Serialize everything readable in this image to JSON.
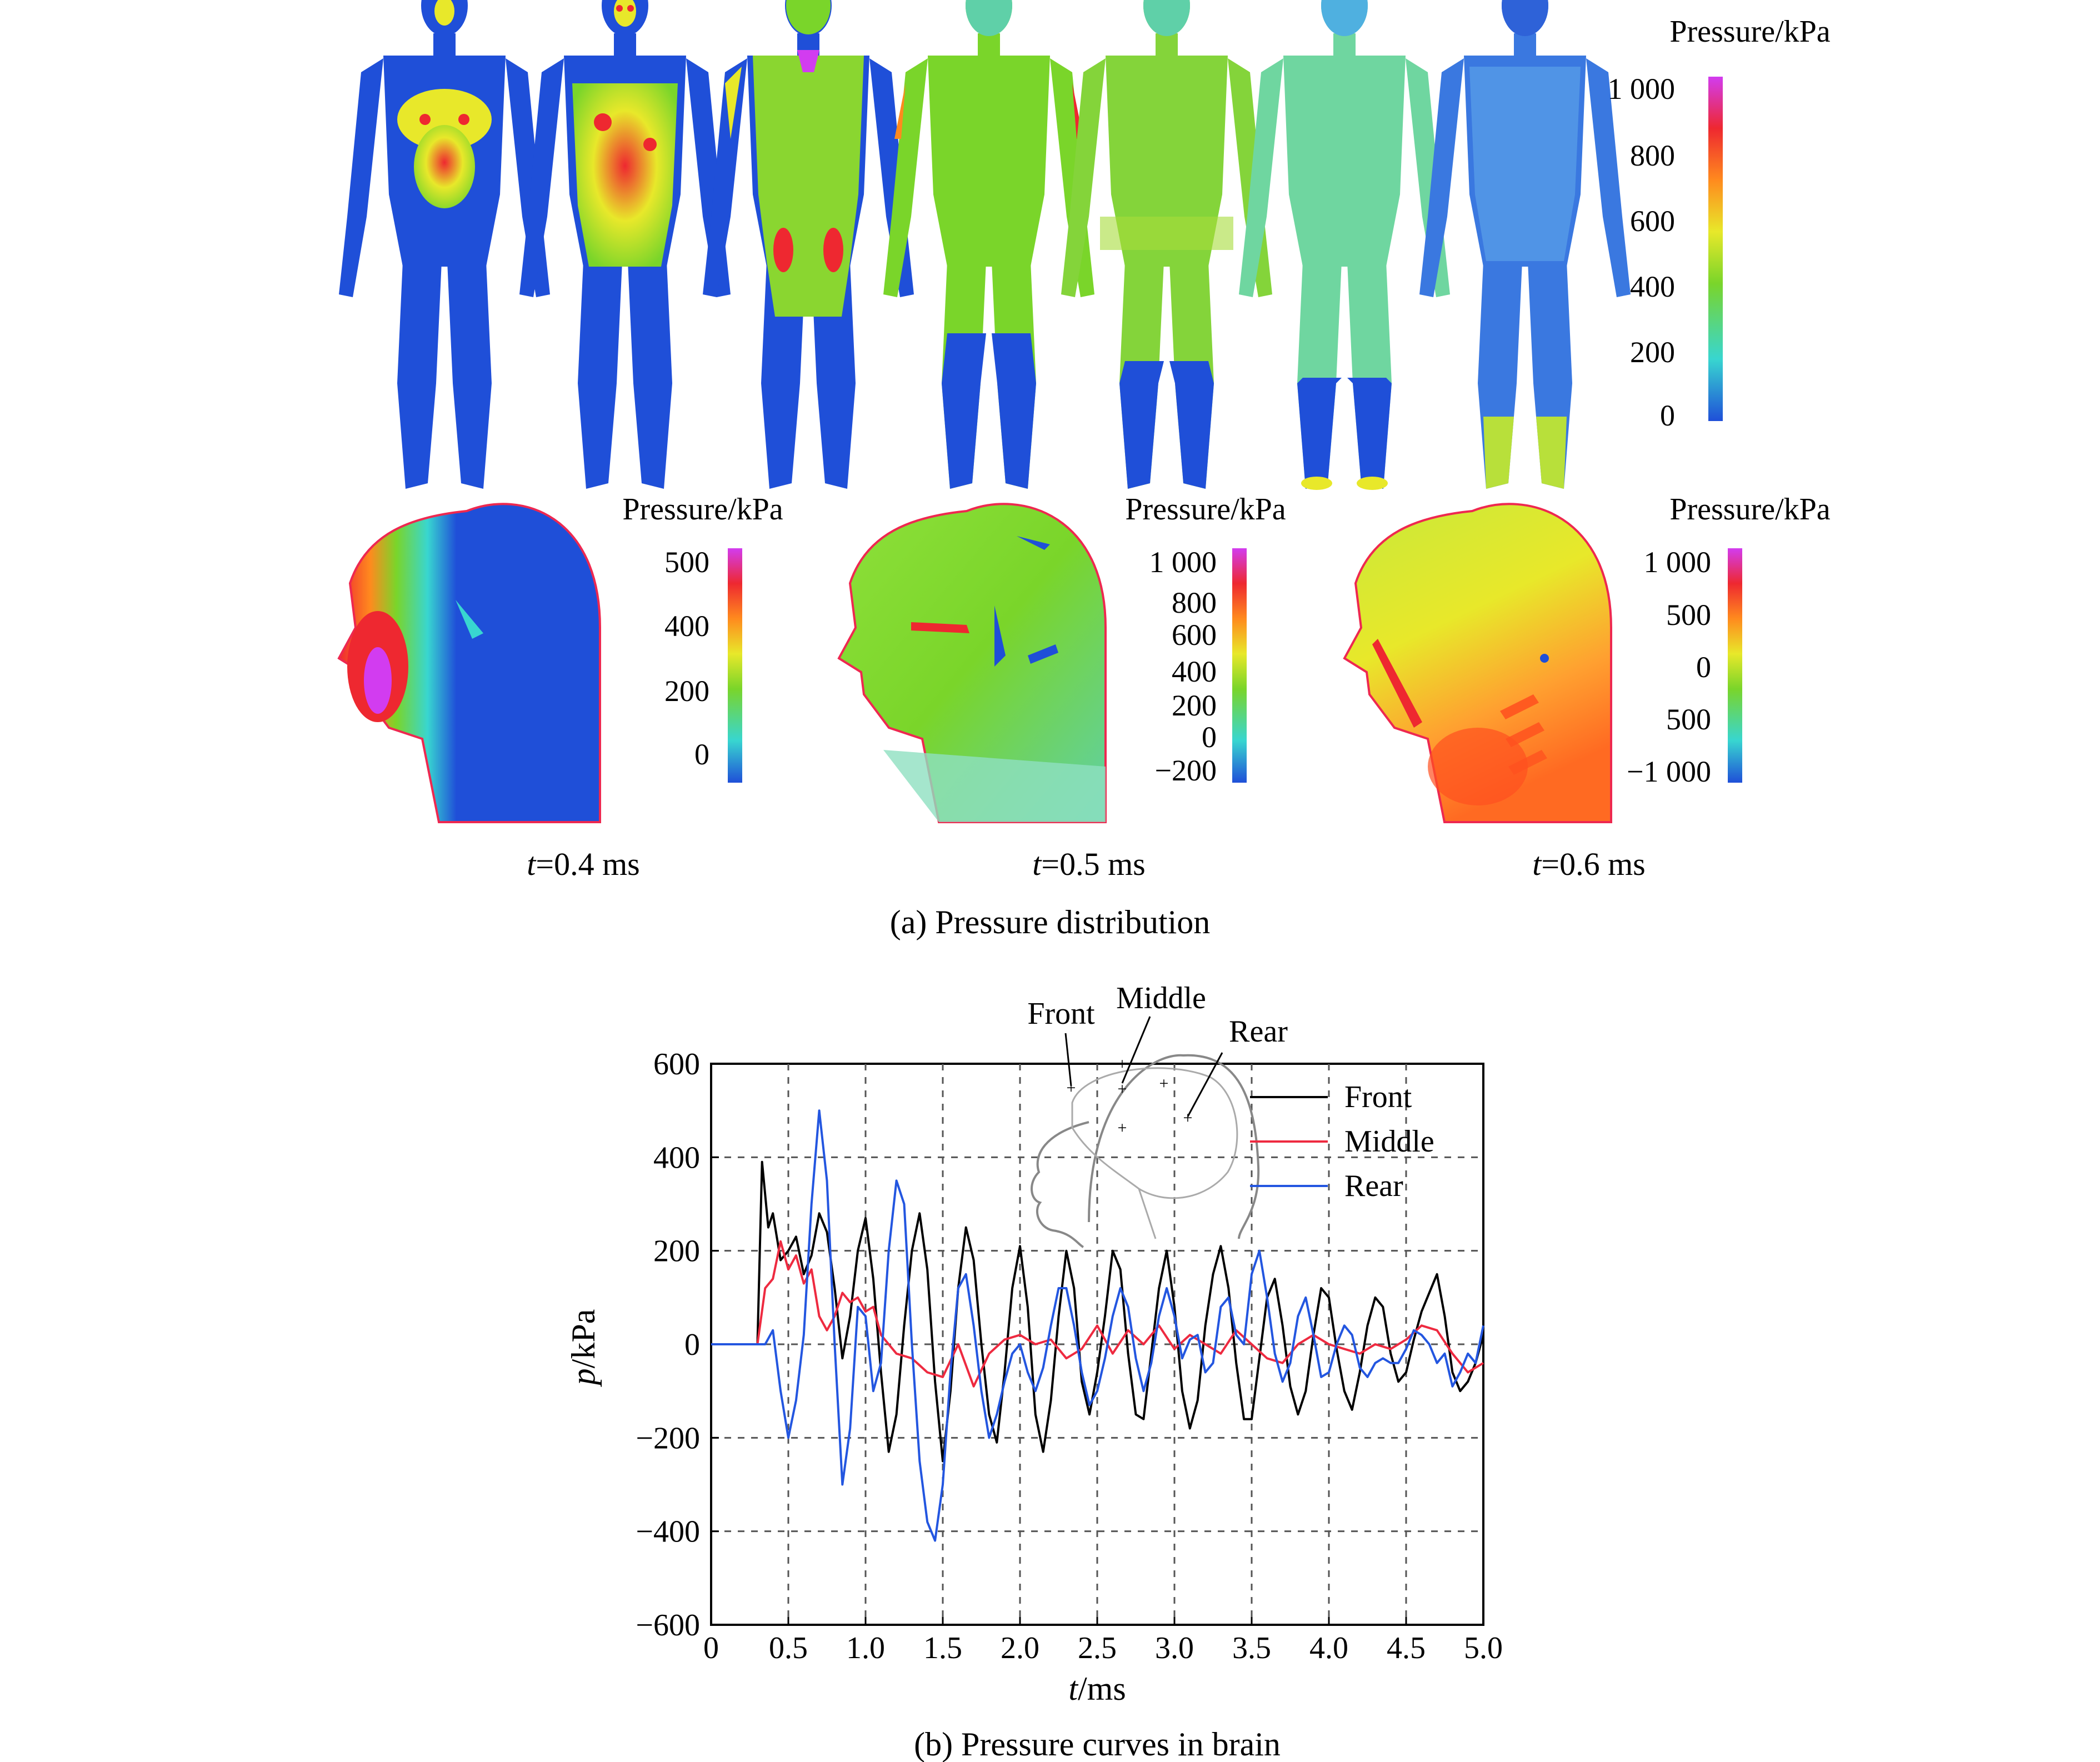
{
  "panel_a": {
    "caption": "(a) Pressure distribution",
    "body_legend": {
      "title": "Pressure/kPa",
      "ticks": [
        "1 000",
        "800",
        "600",
        "400",
        "200",
        "0"
      ]
    },
    "head_views": [
      {
        "time_prefix": "t",
        "time_value": "=0.4 ms",
        "legend": {
          "title": "Pressure/kPa",
          "ticks": [
            "500",
            "400",
            "200",
            "0"
          ]
        }
      },
      {
        "time_prefix": "t",
        "time_value": "=0.5 ms",
        "legend": {
          "title": "Pressure/kPa",
          "ticks": [
            "1 000",
            "800",
            "600",
            "400",
            "200",
            "0",
            "−200"
          ]
        }
      },
      {
        "time_prefix": "t",
        "time_value": "=0.6 ms",
        "legend": {
          "title": "Pressure/kPa",
          "ticks": [
            "1 000",
            "500",
            "0",
            "500",
            "−1 000"
          ]
        }
      }
    ],
    "colors": {
      "blue": "#1f4fd8",
      "cyan": "#38d6d0",
      "green": "#7ad52a",
      "yellow": "#e8e82a",
      "orange": "#ff8a1e",
      "red": "#ee2830",
      "magenta": "#d23cf0"
    }
  },
  "panel_b": {
    "caption": "(b) Pressure curves in brain",
    "inset_labels": [
      "Front",
      "Middle",
      "Rear"
    ]
  },
  "chart_data": {
    "type": "line",
    "title": "",
    "xlabel_var": "t",
    "xlabel_unit": "/ms",
    "ylabel_var": "p",
    "ylabel_unit": "/kPa",
    "xlim": [
      0,
      5.0
    ],
    "ylim": [
      -600,
      600
    ],
    "x_ticks": [
      "0",
      "0.5",
      "1.0",
      "1.5",
      "2.0",
      "2.5",
      "3.0",
      "3.5",
      "4.0",
      "4.5",
      "5.0"
    ],
    "y_ticks": [
      "600",
      "400",
      "200",
      "0",
      "−200",
      "−400",
      "−600"
    ],
    "grid": true,
    "legend_position": "top-right",
    "series": [
      {
        "name": "Front",
        "color": "#000000",
        "x": [
          0,
          0.3,
          0.33,
          0.37,
          0.4,
          0.45,
          0.5,
          0.55,
          0.6,
          0.65,
          0.7,
          0.75,
          0.8,
          0.85,
          0.9,
          0.95,
          1.0,
          1.05,
          1.1,
          1.15,
          1.2,
          1.25,
          1.3,
          1.35,
          1.4,
          1.45,
          1.5,
          1.55,
          1.6,
          1.65,
          1.7,
          1.75,
          1.8,
          1.85,
          1.9,
          1.95,
          2.0,
          2.05,
          2.1,
          2.15,
          2.2,
          2.25,
          2.3,
          2.35,
          2.4,
          2.45,
          2.5,
          2.55,
          2.6,
          2.65,
          2.7,
          2.75,
          2.8,
          2.85,
          2.9,
          2.95,
          3.0,
          3.05,
          3.1,
          3.15,
          3.2,
          3.25,
          3.3,
          3.35,
          3.4,
          3.45,
          3.5,
          3.55,
          3.6,
          3.65,
          3.7,
          3.75,
          3.8,
          3.85,
          3.9,
          3.95,
          4.0,
          4.05,
          4.1,
          4.15,
          4.2,
          4.25,
          4.3,
          4.35,
          4.4,
          4.45,
          4.5,
          4.55,
          4.6,
          4.65,
          4.7,
          4.75,
          4.8,
          4.85,
          4.9,
          4.95,
          5.0
        ],
        "y": [
          0,
          0,
          390,
          250,
          280,
          180,
          200,
          230,
          150,
          190,
          280,
          240,
          120,
          -30,
          60,
          200,
          270,
          140,
          -60,
          -230,
          -150,
          40,
          200,
          280,
          160,
          -80,
          -250,
          -100,
          120,
          250,
          180,
          0,
          -150,
          -210,
          -60,
          120,
          210,
          80,
          -150,
          -230,
          -120,
          60,
          200,
          120,
          -80,
          -150,
          -60,
          60,
          200,
          160,
          -20,
          -150,
          -160,
          -20,
          120,
          200,
          80,
          -100,
          -180,
          -120,
          40,
          150,
          210,
          120,
          -40,
          -160,
          -160,
          -30,
          100,
          140,
          40,
          -90,
          -150,
          -100,
          20,
          120,
          100,
          -10,
          -100,
          -140,
          -60,
          40,
          100,
          80,
          -20,
          -80,
          -60,
          10,
          70,
          110,
          150,
          60,
          -60,
          -100,
          -80,
          -40,
          20
        ]
      },
      {
        "name": "Middle",
        "color": "#ee2a40",
        "x": [
          0,
          0.3,
          0.35,
          0.4,
          0.45,
          0.5,
          0.55,
          0.6,
          0.65,
          0.7,
          0.75,
          0.8,
          0.85,
          0.9,
          0.95,
          1.0,
          1.05,
          1.1,
          1.2,
          1.3,
          1.4,
          1.5,
          1.6,
          1.7,
          1.8,
          1.9,
          2.0,
          2.1,
          2.2,
          2.3,
          2.4,
          2.5,
          2.6,
          2.7,
          2.8,
          2.9,
          3.0,
          3.1,
          3.2,
          3.3,
          3.4,
          3.5,
          3.6,
          3.7,
          3.8,
          3.9,
          4.0,
          4.1,
          4.2,
          4.3,
          4.4,
          4.5,
          4.6,
          4.7,
          4.8,
          4.9,
          5.0
        ],
        "y": [
          0,
          0,
          120,
          140,
          220,
          160,
          190,
          130,
          160,
          60,
          30,
          60,
          110,
          90,
          100,
          70,
          80,
          20,
          -20,
          -30,
          -60,
          -70,
          0,
          -90,
          -20,
          10,
          20,
          0,
          10,
          -30,
          -10,
          40,
          -20,
          30,
          0,
          40,
          -10,
          20,
          0,
          -20,
          30,
          0,
          -30,
          -40,
          0,
          20,
          0,
          -10,
          -20,
          0,
          -10,
          10,
          40,
          30,
          -20,
          -60,
          -40
        ]
      },
      {
        "name": "Rear",
        "color": "#2356e0",
        "x": [
          0,
          0.35,
          0.4,
          0.45,
          0.5,
          0.55,
          0.6,
          0.65,
          0.7,
          0.75,
          0.8,
          0.85,
          0.9,
          0.95,
          1.0,
          1.05,
          1.1,
          1.15,
          1.2,
          1.25,
          1.3,
          1.35,
          1.4,
          1.45,
          1.5,
          1.55,
          1.6,
          1.65,
          1.7,
          1.75,
          1.8,
          1.85,
          1.9,
          1.95,
          2.0,
          2.05,
          2.1,
          2.15,
          2.2,
          2.25,
          2.3,
          2.35,
          2.4,
          2.45,
          2.5,
          2.55,
          2.6,
          2.65,
          2.7,
          2.75,
          2.8,
          2.85,
          2.9,
          2.95,
          3.0,
          3.05,
          3.1,
          3.15,
          3.2,
          3.25,
          3.3,
          3.35,
          3.4,
          3.45,
          3.5,
          3.55,
          3.6,
          3.65,
          3.7,
          3.75,
          3.8,
          3.85,
          3.9,
          3.95,
          4.0,
          4.05,
          4.1,
          4.15,
          4.2,
          4.25,
          4.3,
          4.35,
          4.4,
          4.45,
          4.5,
          4.55,
          4.6,
          4.65,
          4.7,
          4.75,
          4.8,
          4.85,
          4.9,
          4.95,
          5.0
        ],
        "y": [
          0,
          0,
          30,
          -100,
          -200,
          -120,
          20,
          300,
          500,
          350,
          0,
          -300,
          -180,
          80,
          60,
          -100,
          -40,
          200,
          350,
          300,
          0,
          -250,
          -380,
          -420,
          -300,
          -60,
          120,
          150,
          40,
          -100,
          -200,
          -150,
          -80,
          -20,
          0,
          -60,
          -100,
          -50,
          40,
          120,
          120,
          40,
          -60,
          -130,
          -100,
          -30,
          60,
          120,
          80,
          -30,
          -100,
          -40,
          60,
          120,
          60,
          -30,
          10,
          20,
          -60,
          -40,
          80,
          100,
          20,
          0,
          150,
          200,
          100,
          -20,
          -80,
          -40,
          60,
          100,
          20,
          -70,
          -60,
          0,
          40,
          20,
          -50,
          -70,
          -40,
          -30,
          -40,
          -40,
          -10,
          30,
          20,
          0,
          -40,
          -20,
          -90,
          -60,
          -20,
          -40,
          40
        ]
      }
    ]
  }
}
